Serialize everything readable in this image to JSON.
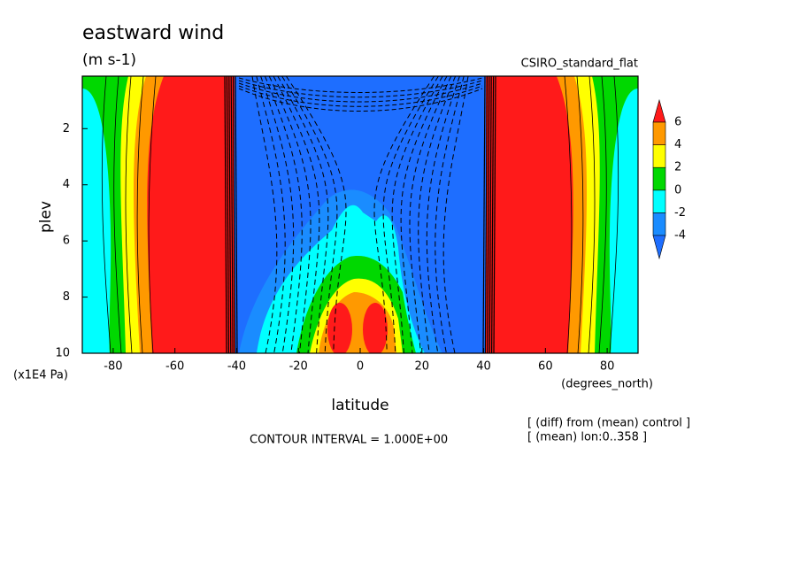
{
  "chart_data": {
    "type": "contour",
    "title": "eastward wind",
    "units": "(m s-1)",
    "subtitle": "CSIRO_standard_flat",
    "x_label": "latitude",
    "x_unit": "(degrees_north)",
    "y_label": "plev",
    "y_unit": "(x1E4 Pa)",
    "xlim": [
      -90,
      90
    ],
    "xticks": [
      -80,
      -60,
      -40,
      -20,
      0,
      20,
      40,
      60,
      80
    ],
    "ylim": [
      10,
      0.13
    ],
    "yticks": [
      2,
      4,
      6,
      8,
      10
    ],
    "contour_interval": "CONTOUR INTERVAL = 1.000E+00",
    "notes": [
      "[ (diff) from (mean) control ]",
      "[ (mean) lon:0..358 ]"
    ],
    "colorbar": {
      "levels": [
        -4,
        -2,
        0,
        2,
        4,
        6
      ],
      "colors": [
        "#1e6eff",
        "#1a8cff",
        "#00ffff",
        "#00d800",
        "#ffff00",
        "#ff9900",
        "#ff1a1a"
      ]
    }
  }
}
